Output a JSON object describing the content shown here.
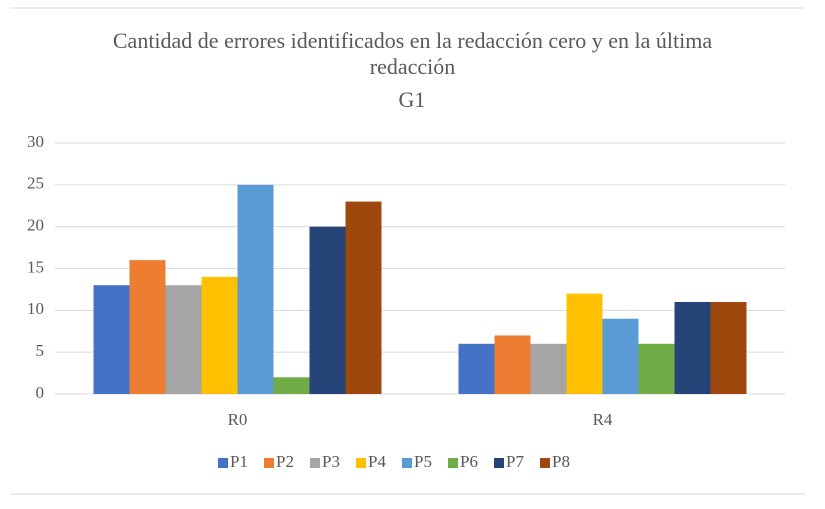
{
  "chart_data": {
    "type": "bar",
    "title": "Cantidad de errores identificados en la redacción cero y en la última redacción",
    "subtitle": "G1",
    "categories": [
      "R0",
      "R4"
    ],
    "series": [
      {
        "name": "P1",
        "color": "#4472c4",
        "values": [
          13,
          6
        ]
      },
      {
        "name": "P2",
        "color": "#ed7d31",
        "values": [
          16,
          7
        ]
      },
      {
        "name": "P3",
        "color": "#a5a5a5",
        "values": [
          13,
          6
        ]
      },
      {
        "name": "P4",
        "color": "#ffc000",
        "values": [
          14,
          12
        ]
      },
      {
        "name": "P5",
        "color": "#5b9bd5",
        "values": [
          25,
          9
        ]
      },
      {
        "name": "P6",
        "color": "#70ad47",
        "values": [
          2,
          6
        ]
      },
      {
        "name": "P7",
        "color": "#264478",
        "values": [
          20,
          11
        ]
      },
      {
        "name": "P8",
        "color": "#9e480e",
        "values": [
          23,
          11
        ]
      }
    ],
    "ylim": [
      0,
      30
    ],
    "yticks": [
      0,
      5,
      10,
      15,
      20,
      25,
      30
    ],
    "grid": true,
    "legend": "bottom"
  }
}
